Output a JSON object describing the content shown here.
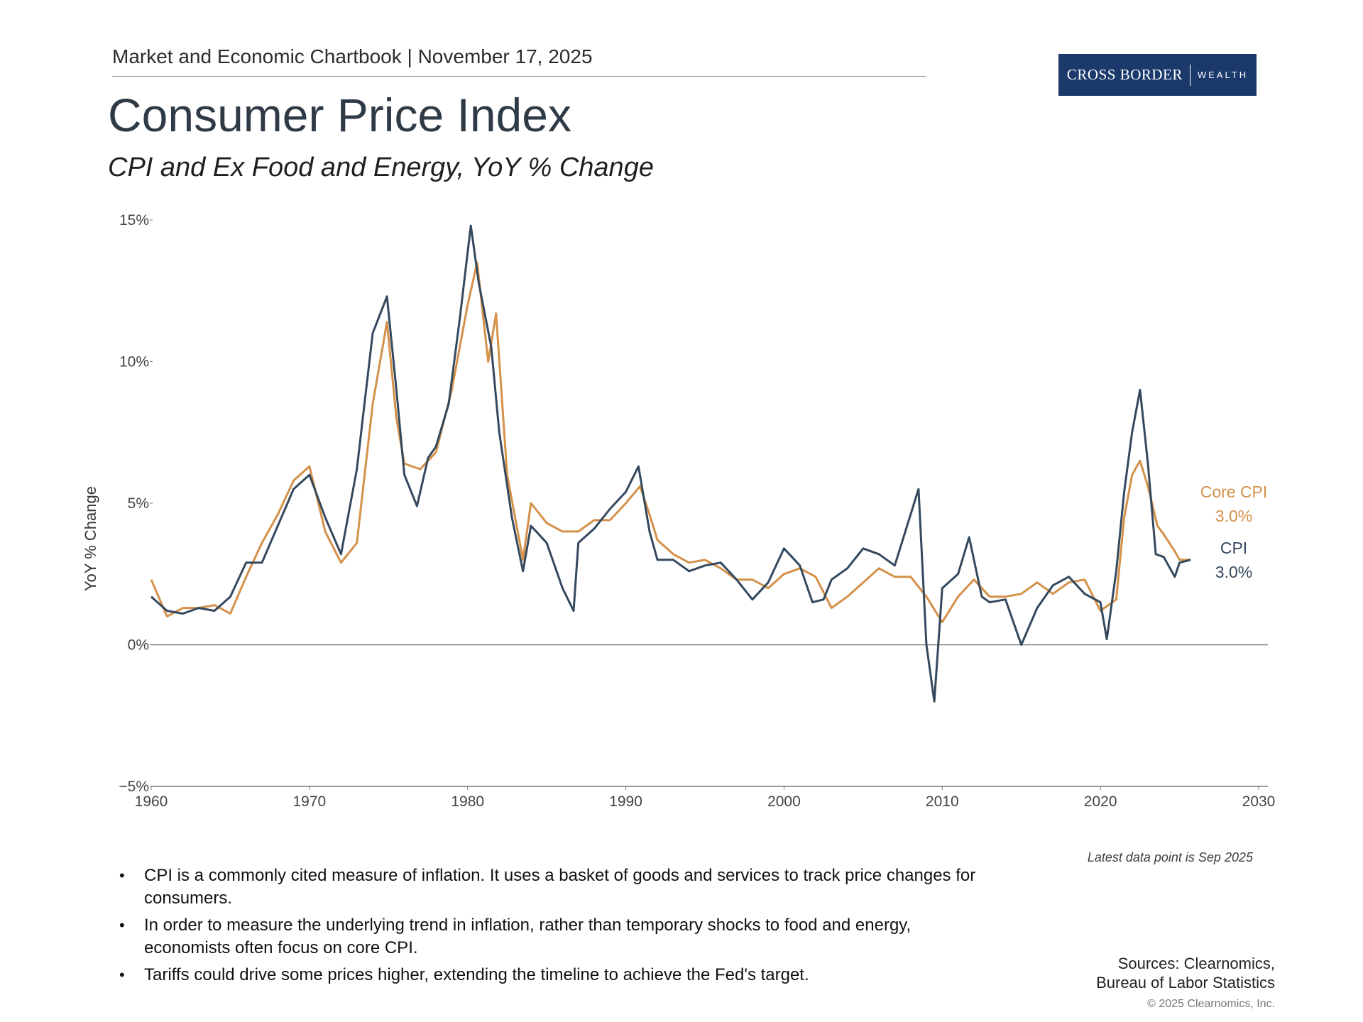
{
  "header": {
    "line": "Market and Economic Chartbook | November 17, 2025",
    "logo_name": "CROSS BORDER",
    "logo_sub": "WEALTH",
    "brand_color": "#1b3a6b"
  },
  "title": "Consumer Price Index",
  "subtitle": "CPI and Ex Food and Energy, YoY % Change",
  "chart_data": {
    "type": "line",
    "title": "Consumer Price Index",
    "subtitle": "CPI and Ex Food and Energy, YoY % Change",
    "ylabel": "YoY % Change",
    "xlabel": "",
    "xlim": [
      1960,
      2030
    ],
    "ylim": [
      -5,
      15
    ],
    "x_ticks": [
      "1960",
      "1970",
      "1980",
      "1990",
      "2000",
      "2010",
      "2020",
      "2030"
    ],
    "x_tick_values": [
      1960,
      1970,
      1980,
      1990,
      2000,
      2010,
      2020,
      2030
    ],
    "y_ticks": [
      "−5%",
      "0%",
      "5%",
      "10%",
      "15%"
    ],
    "y_tick_values": [
      -5,
      0,
      5,
      10,
      15
    ],
    "series": [
      {
        "name": "CPI",
        "label": "CPI",
        "end_label": "3.0%",
        "color": "#34495e",
        "points": [
          [
            1960,
            1.7
          ],
          [
            1961,
            1.2
          ],
          [
            1962,
            1.1
          ],
          [
            1963,
            1.3
          ],
          [
            1964,
            1.2
          ],
          [
            1965,
            1.7
          ],
          [
            1966,
            2.9
          ],
          [
            1967,
            2.9
          ],
          [
            1968,
            4.2
          ],
          [
            1969,
            5.5
          ],
          [
            1970,
            6.0
          ],
          [
            1971,
            4.5
          ],
          [
            1972,
            3.2
          ],
          [
            1973,
            6.2
          ],
          [
            1974,
            11.0
          ],
          [
            1974.9,
            12.3
          ],
          [
            1975.5,
            9.0
          ],
          [
            1976,
            6.0
          ],
          [
            1976.8,
            4.9
          ],
          [
            1977.5,
            6.6
          ],
          [
            1978,
            7.0
          ],
          [
            1978.8,
            8.5
          ],
          [
            1979.5,
            11.5
          ],
          [
            1980.2,
            14.8
          ],
          [
            1980.7,
            12.8
          ],
          [
            1981.5,
            10.5
          ],
          [
            1982,
            7.5
          ],
          [
            1982.8,
            4.5
          ],
          [
            1983.5,
            2.6
          ],
          [
            1984,
            4.2
          ],
          [
            1985,
            3.6
          ],
          [
            1986,
            2.0
          ],
          [
            1986.7,
            1.2
          ],
          [
            1987,
            3.6
          ],
          [
            1988,
            4.1
          ],
          [
            1989,
            4.8
          ],
          [
            1990,
            5.4
          ],
          [
            1990.8,
            6.3
          ],
          [
            1991.5,
            4.0
          ],
          [
            1992,
            3.0
          ],
          [
            1993,
            3.0
          ],
          [
            1994,
            2.6
          ],
          [
            1995,
            2.8
          ],
          [
            1996,
            2.9
          ],
          [
            1997,
            2.3
          ],
          [
            1998,
            1.6
          ],
          [
            1999,
            2.2
          ],
          [
            2000,
            3.4
          ],
          [
            2001,
            2.8
          ],
          [
            2001.8,
            1.5
          ],
          [
            2002.5,
            1.6
          ],
          [
            2003,
            2.3
          ],
          [
            2004,
            2.7
          ],
          [
            2005,
            3.4
          ],
          [
            2006,
            3.2
          ],
          [
            2007,
            2.8
          ],
          [
            2008.5,
            5.5
          ],
          [
            2009,
            0.0
          ],
          [
            2009.5,
            -2.0
          ],
          [
            2010,
            2.0
          ],
          [
            2011,
            2.5
          ],
          [
            2011.7,
            3.8
          ],
          [
            2012.5,
            1.7
          ],
          [
            2013,
            1.5
          ],
          [
            2014,
            1.6
          ],
          [
            2015,
            0.0
          ],
          [
            2016,
            1.3
          ],
          [
            2017,
            2.1
          ],
          [
            2018,
            2.4
          ],
          [
            2019,
            1.8
          ],
          [
            2020,
            1.5
          ],
          [
            2020.4,
            0.2
          ],
          [
            2021,
            2.6
          ],
          [
            2021.5,
            5.4
          ],
          [
            2022,
            7.5
          ],
          [
            2022.5,
            9.0
          ],
          [
            2023,
            6.4
          ],
          [
            2023.5,
            3.2
          ],
          [
            2024,
            3.1
          ],
          [
            2024.7,
            2.4
          ],
          [
            2025,
            2.9
          ],
          [
            2025.7,
            3.0
          ]
        ]
      },
      {
        "name": "Core CPI",
        "label": "Core CPI",
        "end_label": "3.0%",
        "color": "#d4914a",
        "points": [
          [
            1960,
            2.3
          ],
          [
            1961,
            1.0
          ],
          [
            1962,
            1.3
          ],
          [
            1963,
            1.3
          ],
          [
            1964,
            1.4
          ],
          [
            1965,
            1.1
          ],
          [
            1966,
            2.4
          ],
          [
            1967,
            3.6
          ],
          [
            1968,
            4.6
          ],
          [
            1969,
            5.8
          ],
          [
            1970,
            6.3
          ],
          [
            1971,
            4.0
          ],
          [
            1972,
            2.9
          ],
          [
            1973,
            3.6
          ],
          [
            1974,
            8.5
          ],
          [
            1974.9,
            11.4
          ],
          [
            1975.5,
            8.0
          ],
          [
            1976,
            6.4
          ],
          [
            1977,
            6.2
          ],
          [
            1978,
            6.8
          ],
          [
            1979,
            9.0
          ],
          [
            1980,
            12.0
          ],
          [
            1980.6,
            13.5
          ],
          [
            1981.3,
            10.0
          ],
          [
            1981.8,
            11.7
          ],
          [
            1982.5,
            6.0
          ],
          [
            1983.5,
            3.0
          ],
          [
            1984,
            5.0
          ],
          [
            1985,
            4.3
          ],
          [
            1986,
            4.0
          ],
          [
            1987,
            4.0
          ],
          [
            1988,
            4.4
          ],
          [
            1989,
            4.4
          ],
          [
            1990,
            5.0
          ],
          [
            1990.9,
            5.6
          ],
          [
            1991.5,
            4.6
          ],
          [
            1992,
            3.7
          ],
          [
            1993,
            3.2
          ],
          [
            1994,
            2.9
          ],
          [
            1995,
            3.0
          ],
          [
            1996,
            2.7
          ],
          [
            1997,
            2.3
          ],
          [
            1998,
            2.3
          ],
          [
            1999,
            2.0
          ],
          [
            2000,
            2.5
          ],
          [
            2001,
            2.7
          ],
          [
            2002,
            2.4
          ],
          [
            2003,
            1.3
          ],
          [
            2004,
            1.7
          ],
          [
            2005,
            2.2
          ],
          [
            2006,
            2.7
          ],
          [
            2007,
            2.4
          ],
          [
            2008,
            2.4
          ],
          [
            2009,
            1.7
          ],
          [
            2010,
            0.8
          ],
          [
            2011,
            1.7
          ],
          [
            2012,
            2.3
          ],
          [
            2013,
            1.7
          ],
          [
            2014,
            1.7
          ],
          [
            2015,
            1.8
          ],
          [
            2016,
            2.2
          ],
          [
            2017,
            1.8
          ],
          [
            2018,
            2.2
          ],
          [
            2019,
            2.3
          ],
          [
            2020,
            1.2
          ],
          [
            2021,
            1.6
          ],
          [
            2021.5,
            4.5
          ],
          [
            2022,
            6.0
          ],
          [
            2022.5,
            6.5
          ],
          [
            2023,
            5.6
          ],
          [
            2023.6,
            4.2
          ],
          [
            2024,
            3.9
          ],
          [
            2024.7,
            3.3
          ],
          [
            2025,
            3.0
          ],
          [
            2025.7,
            3.0
          ]
        ]
      }
    ],
    "legend_placement": "right of line ends"
  },
  "latest_note": "Latest data point is Sep 2025",
  "bullets": [
    "CPI is a commonly cited measure of inflation. It uses a basket of goods and services to track price changes for consumers.",
    "In order to measure the underlying trend in inflation, rather than temporary shocks to food and energy, economists often focus on core CPI.",
    "Tariffs could drive some prices higher, extending the timeline to achieve the Fed's target."
  ],
  "bullet_symbol": "•",
  "sources": {
    "line1": "Sources: Clearnomics,",
    "line2": "Bureau of Labor Statistics"
  },
  "copyright": "© 2025 Clearnomics, Inc."
}
